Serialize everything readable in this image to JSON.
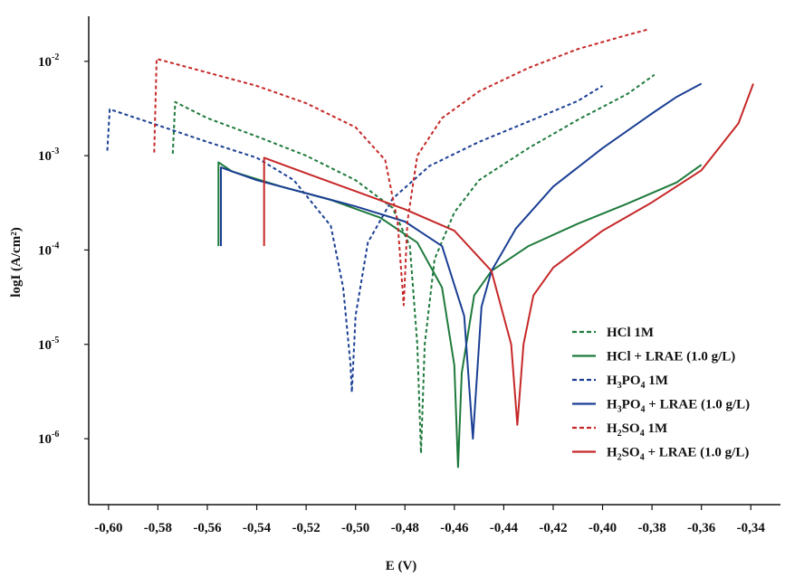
{
  "chart_data": {
    "type": "line",
    "xlabel": "E (V)",
    "ylabel": "logI (A/cm²)",
    "xlim": [
      -0.608,
      -0.328
    ],
    "x_ticks": [
      -0.6,
      -0.58,
      -0.56,
      -0.54,
      -0.52,
      -0.5,
      -0.48,
      -0.46,
      -0.44,
      -0.42,
      -0.4,
      -0.38,
      -0.36,
      -0.34
    ],
    "x_tick_labels": [
      "-0,60",
      "-0,58",
      "-0,56",
      "-0,54",
      "-0,52",
      "-0,50",
      "-0,48",
      "-0,46",
      "-0,44",
      "-0,42",
      "-0,40",
      "-0,38",
      "-0,36",
      "-0,34"
    ],
    "y_scale": "log",
    "ylim": [
      2e-07,
      0.03
    ],
    "y_ticks": [
      1e-06,
      1e-05,
      0.0001,
      0.001,
      0.01
    ],
    "y_tick_labels": [
      {
        "base": "10",
        "exp": "-6"
      },
      {
        "base": "10",
        "exp": "-5"
      },
      {
        "base": "10",
        "exp": "-4"
      },
      {
        "base": "10",
        "exp": "-3"
      },
      {
        "base": "10",
        "exp": "-2"
      }
    ],
    "grid": false,
    "legend_position": "bottom-right",
    "series": [
      {
        "name": "HCl 1M",
        "legend_parts": [
          {
            "t": "HCl 1M"
          }
        ],
        "color": "#1e7a3c",
        "dash": true,
        "points": [
          [
            -0.574,
            0.00105
          ],
          [
            -0.573,
            0.0037
          ],
          [
            -0.56,
            0.0025
          ],
          [
            -0.54,
            0.0016
          ],
          [
            -0.52,
            0.001
          ],
          [
            -0.5,
            0.00055
          ],
          [
            -0.485,
            0.00028
          ],
          [
            -0.478,
            0.00011
          ],
          [
            -0.475,
            1e-05
          ],
          [
            -0.4735,
            7e-07
          ],
          [
            -0.472,
            1e-05
          ],
          [
            -0.468,
            8e-05
          ],
          [
            -0.46,
            0.00025
          ],
          [
            -0.45,
            0.00055
          ],
          [
            -0.43,
            0.0012
          ],
          [
            -0.41,
            0.0024
          ],
          [
            -0.39,
            0.0045
          ],
          [
            -0.379,
            0.0072
          ]
        ]
      },
      {
        "name": "HCl + LRAE (1.0 g/L)",
        "legend_parts": [
          {
            "t": "HCl + LRAE (1.0 g/L)"
          }
        ],
        "color": "#1e7a3c",
        "dash": false,
        "points": [
          [
            -0.5555,
            0.00011
          ],
          [
            -0.5555,
            0.00085
          ],
          [
            -0.55,
            0.00068
          ],
          [
            -0.53,
            0.00047
          ],
          [
            -0.51,
            0.00034
          ],
          [
            -0.49,
            0.00022
          ],
          [
            -0.475,
            0.00012
          ],
          [
            -0.465,
            4e-05
          ],
          [
            -0.46,
            6e-06
          ],
          [
            -0.4585,
            5e-07
          ],
          [
            -0.457,
            5e-06
          ],
          [
            -0.452,
            3.3e-05
          ],
          [
            -0.445,
            6e-05
          ],
          [
            -0.43,
            0.00011
          ],
          [
            -0.41,
            0.00019
          ],
          [
            -0.39,
            0.00031
          ],
          [
            -0.37,
            0.00052
          ],
          [
            -0.36,
            0.0008
          ]
        ]
      },
      {
        "name": "H3PO4 1M",
        "legend_parts": [
          {
            "t": "H"
          },
          {
            "t": "3",
            "sub": true
          },
          {
            "t": "PO"
          },
          {
            "t": "4",
            "sub": true
          },
          {
            "t": " 1M"
          }
        ],
        "color": "#1b3f94",
        "dash": true,
        "points": [
          [
            -0.6005,
            0.00113
          ],
          [
            -0.5995,
            0.0031
          ],
          [
            -0.58,
            0.0021
          ],
          [
            -0.56,
            0.0014
          ],
          [
            -0.54,
            0.00095
          ],
          [
            -0.525,
            0.00055
          ],
          [
            -0.51,
            0.00018
          ],
          [
            -0.505,
            4e-05
          ],
          [
            -0.502,
            6e-06
          ],
          [
            -0.5015,
            3.1e-06
          ],
          [
            -0.5,
            2e-05
          ],
          [
            -0.495,
            0.00012
          ],
          [
            -0.485,
            0.00035
          ],
          [
            -0.47,
            0.00078
          ],
          [
            -0.45,
            0.0014
          ],
          [
            -0.43,
            0.0023
          ],
          [
            -0.41,
            0.0038
          ],
          [
            -0.4,
            0.0055
          ]
        ]
      },
      {
        "name": "H3PO4 + LRAE (1.0 g/L)",
        "legend_parts": [
          {
            "t": "H"
          },
          {
            "t": "3",
            "sub": true
          },
          {
            "t": "PO"
          },
          {
            "t": "4",
            "sub": true
          },
          {
            "t": " + LRAE (1.0 g/L)"
          }
        ],
        "color": "#1b3f94",
        "dash": false,
        "points": [
          [
            -0.5545,
            0.00011
          ],
          [
            -0.5545,
            0.00075
          ],
          [
            -0.54,
            0.00055
          ],
          [
            -0.52,
            0.0004
          ],
          [
            -0.5,
            0.00029
          ],
          [
            -0.48,
            0.0002
          ],
          [
            -0.465,
            0.00011
          ],
          [
            -0.456,
            2e-05
          ],
          [
            -0.4525,
            1e-06
          ],
          [
            -0.449,
            2.5e-05
          ],
          [
            -0.445,
            6e-05
          ],
          [
            -0.435,
            0.00017
          ],
          [
            -0.42,
            0.00047
          ],
          [
            -0.4,
            0.0012
          ],
          [
            -0.38,
            0.0028
          ],
          [
            -0.37,
            0.0042
          ],
          [
            -0.36,
            0.0058
          ]
        ]
      },
      {
        "name": "H2SO4 1M",
        "legend_parts": [
          {
            "t": "H"
          },
          {
            "t": "2",
            "sub": true
          },
          {
            "t": "SO"
          },
          {
            "t": "4",
            "sub": true
          },
          {
            "t": " 1M"
          }
        ],
        "color": "#c62828",
        "dash": true,
        "points": [
          [
            -0.5815,
            0.00108
          ],
          [
            -0.5805,
            0.0106
          ],
          [
            -0.56,
            0.0076
          ],
          [
            -0.54,
            0.0055
          ],
          [
            -0.52,
            0.0036
          ],
          [
            -0.5,
            0.002
          ],
          [
            -0.488,
            0.0009
          ],
          [
            -0.483,
            0.0002
          ],
          [
            -0.4805,
            2.6e-05
          ],
          [
            -0.479,
            0.0002
          ],
          [
            -0.475,
            0.001
          ],
          [
            -0.465,
            0.0025
          ],
          [
            -0.45,
            0.0048
          ],
          [
            -0.43,
            0.0085
          ],
          [
            -0.41,
            0.0135
          ],
          [
            -0.39,
            0.019
          ],
          [
            -0.381,
            0.022
          ]
        ]
      },
      {
        "name": "H2SO4 + LRAE (1.0 g/L)",
        "legend_parts": [
          {
            "t": "H"
          },
          {
            "t": "2",
            "sub": true
          },
          {
            "t": "SO"
          },
          {
            "t": "4",
            "sub": true
          },
          {
            "t": " + LRAE (1.0 g/L)"
          }
        ],
        "color": "#c62828",
        "dash": false,
        "points": [
          [
            -0.537,
            0.00011
          ],
          [
            -0.537,
            0.00095
          ],
          [
            -0.52,
            0.00065
          ],
          [
            -0.5,
            0.00042
          ],
          [
            -0.48,
            0.00027
          ],
          [
            -0.46,
            0.00016
          ],
          [
            -0.445,
            6e-05
          ],
          [
            -0.437,
            1e-05
          ],
          [
            -0.4345,
            1.4e-06
          ],
          [
            -0.432,
            1e-05
          ],
          [
            -0.428,
            3.3e-05
          ],
          [
            -0.42,
            6.5e-05
          ],
          [
            -0.4,
            0.00016
          ],
          [
            -0.38,
            0.00032
          ],
          [
            -0.36,
            0.0007
          ],
          [
            -0.345,
            0.0022
          ],
          [
            -0.339,
            0.0058
          ]
        ]
      }
    ]
  }
}
